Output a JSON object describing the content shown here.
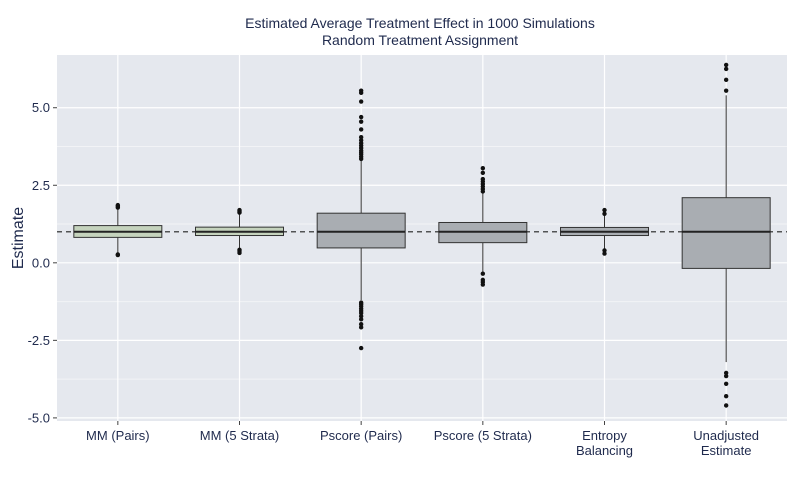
{
  "chart_data": {
    "type": "box",
    "title": "Estimated Average Treatment Effect in 1000 Simulations",
    "subtitle": "Random Treatment Assignment",
    "xlabel": "",
    "ylabel": "Estimate",
    "ylim": [
      -5.1,
      6.7
    ],
    "yticks": [
      -5.0,
      -2.5,
      0.0,
      2.5,
      5.0
    ],
    "ytick_labels": [
      "-5.0",
      "-2.5",
      "0.0",
      "2.5",
      "5.0"
    ],
    "reference_line": {
      "y": 1.0,
      "style": "dashed"
    },
    "grid": true,
    "colors": {
      "panel": "#e5e8ee",
      "grid": "#ffffff",
      "box_green": "#c5d3bd",
      "box_gray": "#a9adb2",
      "outline": "#333333",
      "text": "#1f2a4d"
    },
    "categories": [
      {
        "label_lines": [
          "MM (Pairs)"
        ],
        "q1": 0.82,
        "median": 1.0,
        "q3": 1.2,
        "whisker_low": 0.3,
        "whisker_high": 1.75,
        "outliers": [
          1.78,
          1.82,
          1.86,
          0.27,
          0.25
        ],
        "color": "green"
      },
      {
        "label_lines": [
          "MM (5 Strata)"
        ],
        "q1": 0.88,
        "median": 1.0,
        "q3": 1.15,
        "whisker_low": 0.45,
        "whisker_high": 1.6,
        "outliers": [
          1.62,
          1.66,
          1.7,
          0.42,
          0.38,
          0.32
        ],
        "color": "green"
      },
      {
        "label_lines": [
          "Pscore (Pairs)"
        ],
        "q1": 0.48,
        "median": 1.0,
        "q3": 1.6,
        "whisker_low": -1.2,
        "whisker_high": 3.3,
        "outliers": [
          3.35,
          3.42,
          3.5,
          3.56,
          3.62,
          3.7,
          3.78,
          3.86,
          3.95,
          4.05,
          4.3,
          4.55,
          4.7,
          5.2,
          5.48,
          5.55,
          -1.28,
          -1.33,
          -1.4,
          -1.48,
          -1.55,
          -1.62,
          -1.72,
          -1.82,
          -1.98,
          -2.08,
          -2.75
        ],
        "color": "gray"
      },
      {
        "label_lines": [
          "Pscore (5 Strata)"
        ],
        "q1": 0.65,
        "median": 1.0,
        "q3": 1.3,
        "whisker_low": -0.3,
        "whisker_high": 2.25,
        "outliers": [
          2.3,
          2.38,
          2.46,
          2.54,
          2.62,
          2.7,
          2.9,
          3.05,
          -0.35,
          -0.55,
          -0.62,
          -0.7
        ],
        "color": "gray"
      },
      {
        "label_lines": [
          "Entropy",
          "Balancing"
        ],
        "q1": 0.88,
        "median": 1.0,
        "q3": 1.14,
        "whisker_low": 0.45,
        "whisker_high": 1.55,
        "outliers": [
          1.58,
          1.7,
          0.4,
          0.3
        ],
        "color": "gray"
      },
      {
        "label_lines": [
          "Unadjusted",
          "Estimate"
        ],
        "q1": -0.18,
        "median": 1.0,
        "q3": 2.1,
        "whisker_low": -3.2,
        "whisker_high": 5.4,
        "outliers": [
          5.55,
          5.9,
          6.25,
          6.38,
          -3.55,
          -3.65,
          -3.9,
          -4.3,
          -4.6
        ],
        "color": "gray"
      }
    ]
  }
}
